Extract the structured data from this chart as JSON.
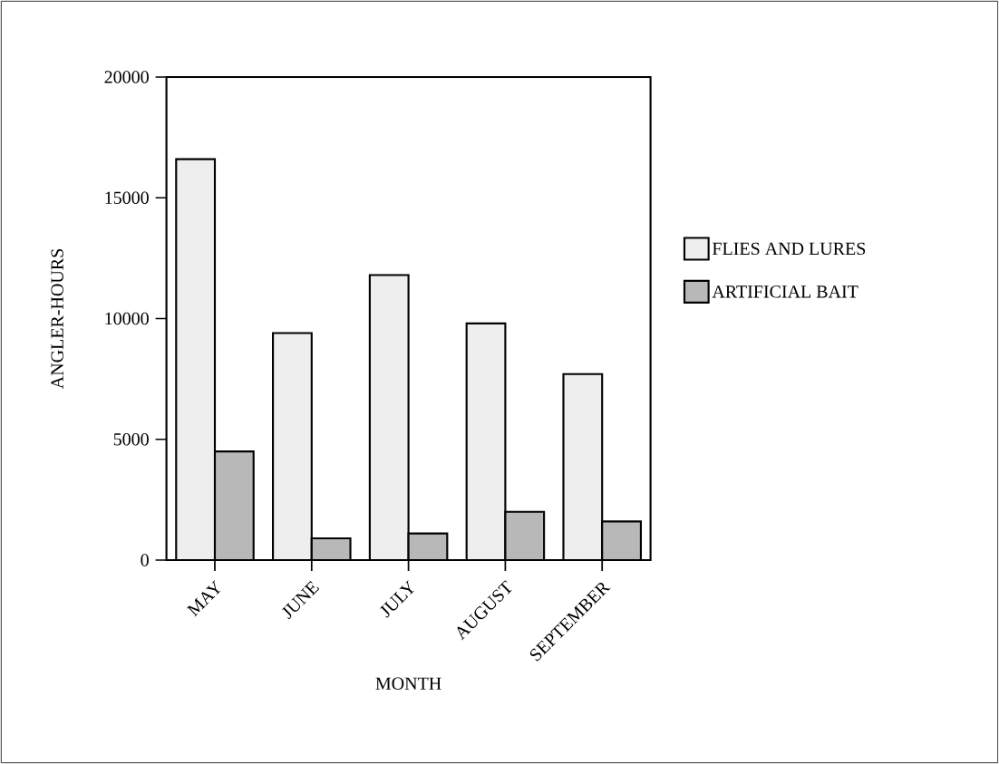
{
  "chart_data": {
    "type": "bar",
    "xlabel": "MONTH",
    "ylabel": "ANGLER-HOURS",
    "categories": [
      "MAY",
      "JUNE",
      "JULY",
      "AUGUST",
      "SEPTEMBER"
    ],
    "series": [
      {
        "name": "FLIES AND LURES",
        "color": "#eeeeee",
        "values": [
          16600,
          9400,
          11800,
          9800,
          7700
        ]
      },
      {
        "name": "ARTIFICIAL BAIT",
        "color": "#b8b8b8",
        "values": [
          4500,
          900,
          1100,
          2000,
          1600
        ]
      }
    ],
    "ylim": [
      0,
      20000
    ],
    "yticks": [
      0,
      5000,
      10000,
      15000,
      20000
    ],
    "legend": "right"
  }
}
